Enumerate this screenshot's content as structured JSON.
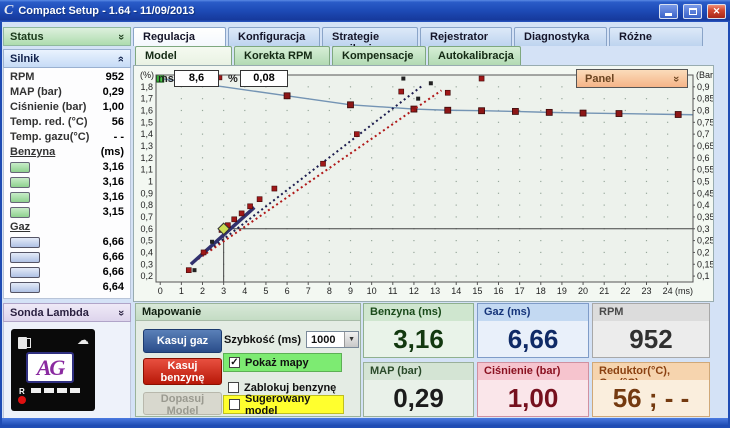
{
  "window": {
    "title": "Compact Setup - 1.64 - 11/09/2013"
  },
  "sidebar": {
    "status_title": "Status",
    "silnik": {
      "title": "Silnik",
      "rows": [
        {
          "label": "RPM",
          "value": "952"
        },
        {
          "label": "MAP (bar)",
          "value": "0,29"
        },
        {
          "label": "Ciśnienie (bar)",
          "value": "1,00"
        },
        {
          "label": "Temp. red. (°C)",
          "value": "56"
        },
        {
          "label": "Temp. gazu(°C)",
          "value": "- -"
        }
      ],
      "benzyna": {
        "label": "Benzyna",
        "unit": "(ms)",
        "values": [
          "3,16",
          "3,16",
          "3,16",
          "3,15"
        ]
      },
      "gaz": {
        "label": "Gaz",
        "values": [
          "6,66",
          "6,66",
          "6,66",
          "6,64"
        ]
      }
    },
    "sonda": {
      "title": "Sonda Lambda",
      "logo_text": "AG",
      "r_label": "R"
    }
  },
  "tabs": {
    "main": [
      {
        "label": "Regulacja",
        "active": true
      },
      {
        "label": "Konfiguracja",
        "active": false
      },
      {
        "label": "Strategie zasilania",
        "active": false
      },
      {
        "label": "Rejestrator",
        "active": false
      },
      {
        "label": "Diagnostyka",
        "active": false
      },
      {
        "label": "Różne",
        "active": false
      }
    ],
    "sub": [
      {
        "label": "Model",
        "active": true
      },
      {
        "label": "Korekta RPM",
        "active": false
      },
      {
        "label": "Kompensacje",
        "active": false
      },
      {
        "label": "Autokalibracja",
        "active": false
      }
    ]
  },
  "chart_controls": {
    "ms_label": "ms",
    "ms_value": "8,6",
    "pct_label": "%",
    "pct_value": "0,08",
    "panel_label": "Panel"
  },
  "chart_data": {
    "type": "line",
    "x_axis": {
      "label": "(ms)",
      "range": [
        -0.2,
        25.2
      ],
      "ticks": [
        0,
        1,
        2,
        3,
        4,
        5,
        6,
        7,
        8,
        9,
        10,
        11,
        12,
        13,
        14,
        15,
        16,
        17,
        18,
        19,
        20,
        21,
        22,
        23,
        24
      ]
    },
    "y_left": {
      "label": "(%)",
      "ticks": [
        [
          1.8,
          "1,8"
        ],
        [
          1.7,
          "1,7"
        ],
        [
          1.6,
          "1,6"
        ],
        [
          1.5,
          "1,5"
        ],
        [
          1.4,
          "1,4"
        ],
        [
          1.3,
          "1,3"
        ],
        [
          1.2,
          "1,2"
        ],
        [
          1.1,
          "1,1"
        ],
        [
          1.0,
          "1"
        ],
        [
          0.9,
          "0,9"
        ],
        [
          0.8,
          "0,8"
        ],
        [
          0.7,
          "0,7"
        ],
        [
          0.6,
          "0,6"
        ],
        [
          0.5,
          "0,5"
        ],
        [
          0.4,
          "0,4"
        ],
        [
          0.3,
          "0,3"
        ],
        [
          0.2,
          "0,2"
        ]
      ]
    },
    "y_right": {
      "label": "(Bar)",
      "range": [
        0.075,
        0.95
      ],
      "ticks": [
        [
          0.9,
          "0,9"
        ],
        [
          0.85,
          "0,85"
        ],
        [
          0.8,
          "0,8"
        ],
        [
          0.75,
          "0,75"
        ],
        [
          0.7,
          "0,7"
        ],
        [
          0.65,
          "0,65"
        ],
        [
          0.6,
          "0,6"
        ],
        [
          0.55,
          "0,55"
        ],
        [
          0.5,
          "0,5"
        ],
        [
          0.45,
          "0,45"
        ],
        [
          0.4,
          "0,4"
        ],
        [
          0.35,
          "0,35"
        ],
        [
          0.3,
          "0,3"
        ],
        [
          0.25,
          "0,25"
        ],
        [
          0.2,
          "0,2"
        ],
        [
          0.15,
          "0,15"
        ],
        [
          0.1,
          "0,1"
        ]
      ]
    },
    "grid": {
      "style": "dots",
      "x_step": 1,
      "y_step": 0.05,
      "color": "#97a89b"
    },
    "units_note": "all point values in right-axis Bar units; left % axis = 2x Bar",
    "series": [
      {
        "name": "gas-pressure-curve",
        "style": "line",
        "color": "#7494b4",
        "marker": "square",
        "marker_color": "#8c1616",
        "points": [
          [
            0,
            0.935
          ],
          [
            3,
            0.9
          ],
          [
            6,
            0.862
          ],
          [
            9,
            0.824
          ],
          [
            12,
            0.806
          ],
          [
            13.6,
            0.801
          ],
          [
            15.2,
            0.799
          ],
          [
            16.8,
            0.796
          ],
          [
            18.4,
            0.792
          ],
          [
            20,
            0.789
          ],
          [
            21.7,
            0.787
          ],
          [
            24.5,
            0.783
          ],
          [
            25.2,
            0.782
          ]
        ],
        "marker_points": [
          [
            6,
            0.862
          ],
          [
            9,
            0.824
          ],
          [
            12,
            0.806
          ],
          [
            13.6,
            0.801
          ],
          [
            15.2,
            0.799
          ],
          [
            16.8,
            0.796
          ],
          [
            18.4,
            0.792
          ],
          [
            20,
            0.789
          ],
          [
            21.7,
            0.787
          ],
          [
            24.5,
            0.783
          ]
        ]
      },
      {
        "name": "model-line-navy",
        "style": "dotted",
        "color": "#1c1c4e",
        "points": [
          [
            1.6,
            0.16
          ],
          [
            12.4,
            0.905
          ]
        ]
      },
      {
        "name": "model-line-red",
        "style": "dotted",
        "color": "#b01818",
        "points": [
          [
            1.6,
            0.16
          ],
          [
            13.3,
            0.885
          ]
        ]
      },
      {
        "name": "measured-segment",
        "style": "thick",
        "color": "#31316e",
        "points": [
          [
            1.45,
            0.15
          ],
          [
            4.45,
            0.39
          ]
        ]
      }
    ],
    "scatter_red": [
      [
        1.35,
        0.125
      ],
      [
        2.05,
        0.2
      ],
      [
        2.9,
        0.295
      ],
      [
        3.2,
        0.315
      ],
      [
        3.5,
        0.34
      ],
      [
        3.85,
        0.365
      ],
      [
        4.25,
        0.395
      ],
      [
        4.7,
        0.425
      ],
      [
        5.4,
        0.47
      ],
      [
        7.7,
        0.575
      ],
      [
        9.3,
        0.7
      ],
      [
        2.8,
        0.94
      ],
      [
        11.4,
        0.88
      ],
      [
        13.6,
        0.875
      ],
      [
        15.2,
        0.935
      ]
    ],
    "scatter_black": [
      [
        1.62,
        0.125
      ],
      [
        2.45,
        0.245
      ],
      [
        11.5,
        0.935
      ],
      [
        12.8,
        0.915
      ],
      [
        12.2,
        0.85
      ]
    ],
    "handle_point": [
      0,
      0.935
    ],
    "current_marker": {
      "x": 3.0,
      "y": 0.3
    },
    "crosshair": {
      "x": 3.0,
      "y": 0.3,
      "color": "#444444"
    }
  },
  "mapowanie": {
    "title": "Mapowanie",
    "buttons": [
      {
        "label": "Kasuj gaz",
        "enabled": true
      },
      {
        "label": "Kasuj benzynę",
        "enabled": true
      },
      {
        "label": "Dopasuj Model",
        "enabled": false
      }
    ],
    "speed_label": "Szybkość (ms)",
    "speed_value": "1000",
    "checkboxes": [
      {
        "label": "Pokaż mapy",
        "checked": true,
        "highlight": "#7deb72"
      },
      {
        "label": "Zablokuj benzynę",
        "checked": false,
        "highlight": ""
      },
      {
        "label": "Sugerowany model",
        "checked": false,
        "highlight": "#ffff2e"
      }
    ]
  },
  "tiles": [
    {
      "label": "Benzyna (ms)",
      "value": "3,16",
      "theme": "green"
    },
    {
      "label": "Gaz (ms)",
      "value": "6,66",
      "theme": "blue"
    },
    {
      "label": "RPM",
      "value": "952",
      "theme": "gray"
    },
    {
      "label": "MAP (bar)",
      "value": "0,29",
      "theme": "palegreen"
    },
    {
      "label": "Ciśnienie (bar)",
      "value": "1,00",
      "theme": "pink"
    },
    {
      "label": "Reduktor(°C), Gaz(°C)",
      "value": "56 ;  - -",
      "theme": "orange"
    }
  ]
}
